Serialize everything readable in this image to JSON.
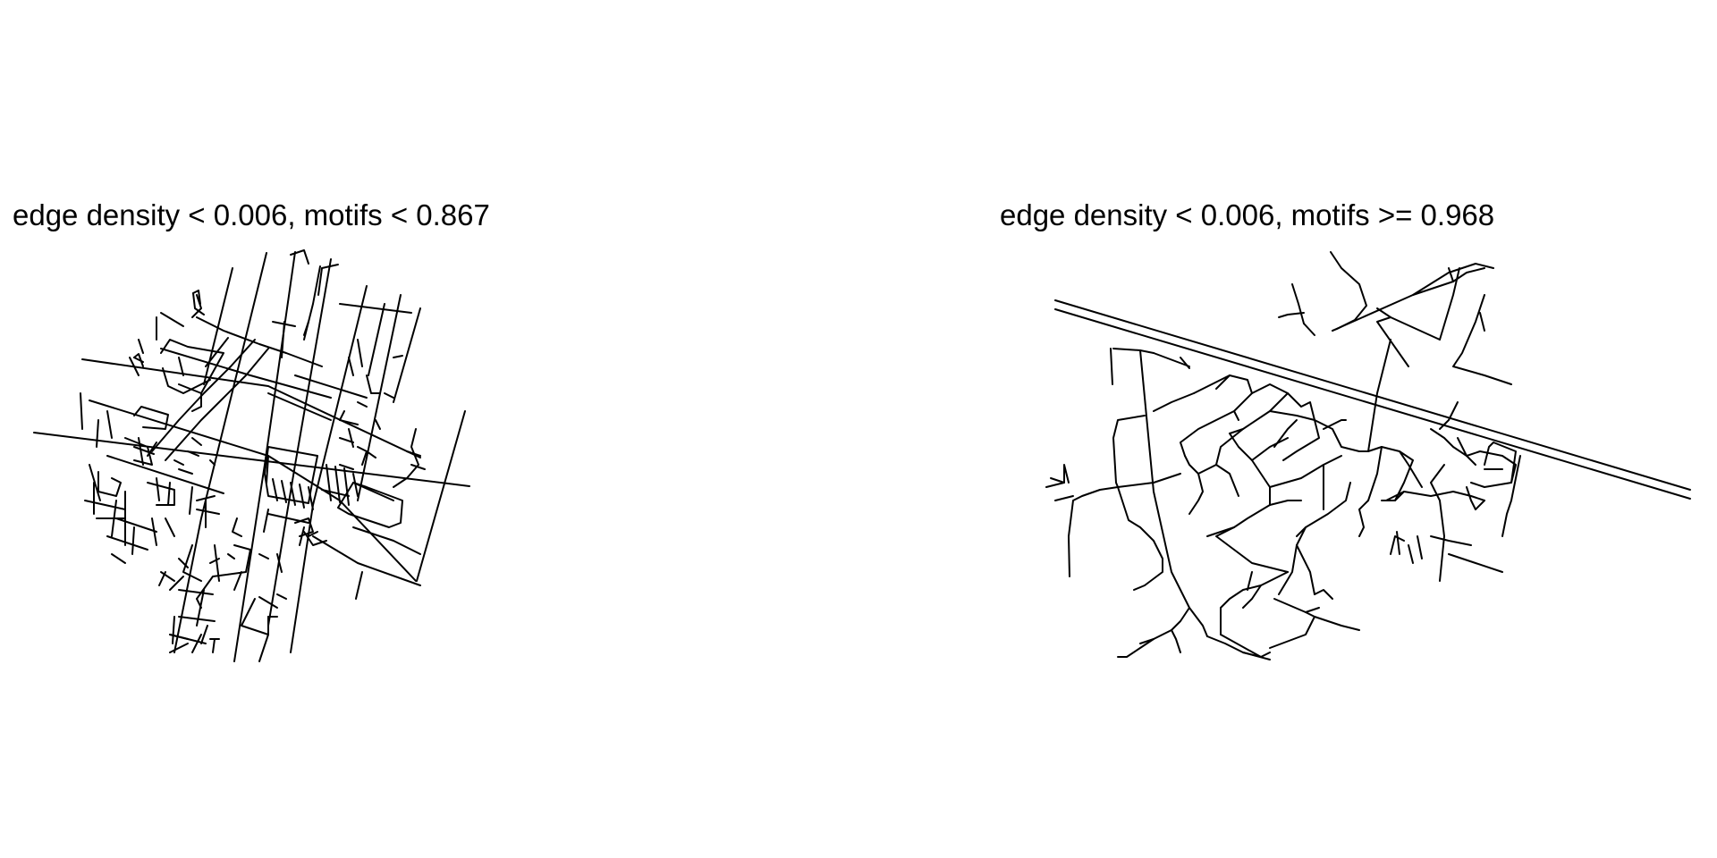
{
  "panels": [
    {
      "title": "edge density < 0.006, motifs < 0.867",
      "map_style": "dense-grid-street-network"
    },
    {
      "title": "edge density < 0.006, motifs >= 0.968",
      "map_style": "curvilinear-suburban-street-network"
    }
  ],
  "colors": {
    "background": "#ffffff",
    "roads": "#000000",
    "text": "#000000"
  }
}
